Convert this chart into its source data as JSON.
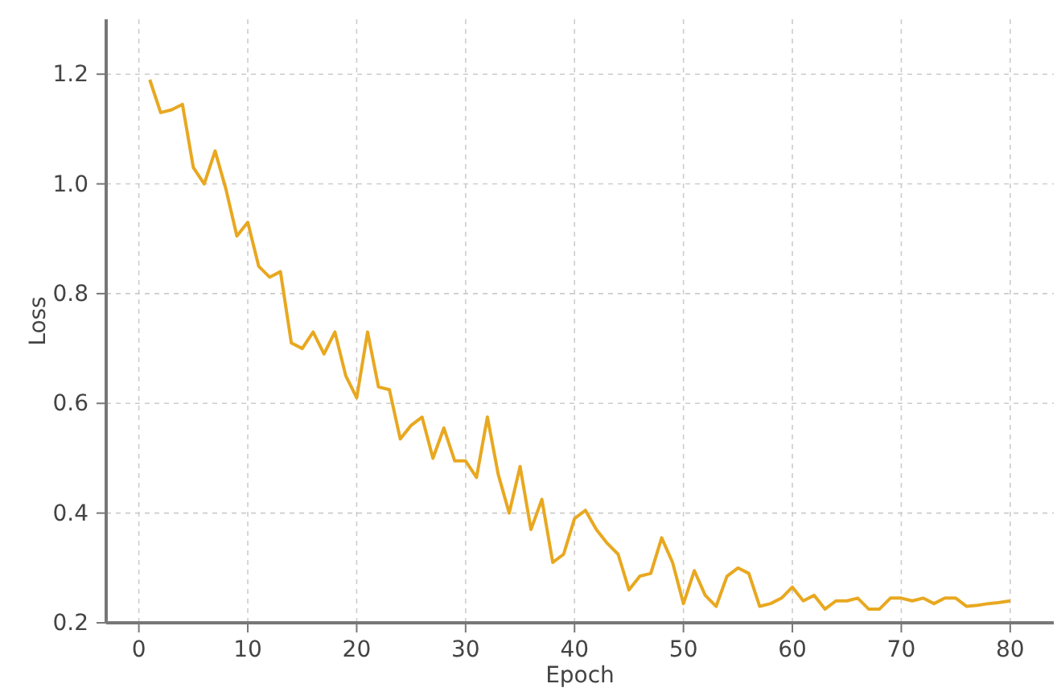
{
  "chart_data": {
    "type": "line",
    "xlabel": "Epoch",
    "ylabel": "Loss",
    "x": [
      1,
      2,
      3,
      4,
      5,
      6,
      7,
      8,
      9,
      10,
      11,
      12,
      13,
      14,
      15,
      16,
      17,
      18,
      19,
      20,
      21,
      22,
      23,
      24,
      25,
      26,
      27,
      28,
      29,
      30,
      31,
      32,
      33,
      34,
      35,
      36,
      37,
      38,
      39,
      40,
      41,
      42,
      43,
      44,
      45,
      46,
      47,
      48,
      49,
      50,
      51,
      52,
      53,
      54,
      55,
      56,
      57,
      58,
      59,
      60,
      61,
      62,
      63,
      64,
      65,
      66,
      67,
      68,
      69,
      70,
      71,
      72,
      73,
      74,
      75,
      76,
      77,
      78,
      79,
      80
    ],
    "series": [
      {
        "color": "#e8a820",
        "values": [
          1.19,
          1.13,
          1.135,
          1.145,
          1.03,
          1.0,
          1.06,
          0.99,
          0.905,
          0.93,
          0.85,
          0.83,
          0.84,
          0.71,
          0.7,
          0.73,
          0.69,
          0.73,
          0.65,
          0.61,
          0.73,
          0.63,
          0.625,
          0.535,
          0.56,
          0.575,
          0.5,
          0.555,
          0.495,
          0.495,
          0.465,
          0.575,
          0.47,
          0.4,
          0.485,
          0.37,
          0.425,
          0.31,
          0.325,
          0.39,
          0.405,
          0.37,
          0.345,
          0.325,
          0.26,
          0.285,
          0.29,
          0.355,
          0.31,
          0.235,
          0.295,
          0.25,
          0.23,
          0.285,
          0.3,
          0.29,
          0.23,
          0.235,
          0.245,
          0.265,
          0.24,
          0.25,
          0.225,
          0.24,
          0.24,
          0.245,
          0.225,
          0.225,
          0.245,
          0.245,
          0.24,
          0.245,
          0.235,
          0.245,
          0.245,
          0.23,
          0.232,
          0.235,
          0.237,
          0.24
        ]
      }
    ],
    "xlim": [
      -3,
      84
    ],
    "ylim": [
      0.2,
      1.3
    ],
    "xticks": [
      0,
      10,
      20,
      30,
      40,
      50,
      60,
      70,
      80
    ],
    "yticks": [
      {
        "value": 0.2,
        "label": "0.2"
      },
      {
        "value": 0.4,
        "label": "0.4"
      },
      {
        "value": 0.6,
        "label": "0.6"
      },
      {
        "value": 0.8,
        "label": "0.8"
      },
      {
        "value": 1.0,
        "label": "1.0"
      },
      {
        "value": 1.2,
        "label": "1.2"
      }
    ],
    "grid": true,
    "line_style": "solid",
    "marker": "none"
  }
}
